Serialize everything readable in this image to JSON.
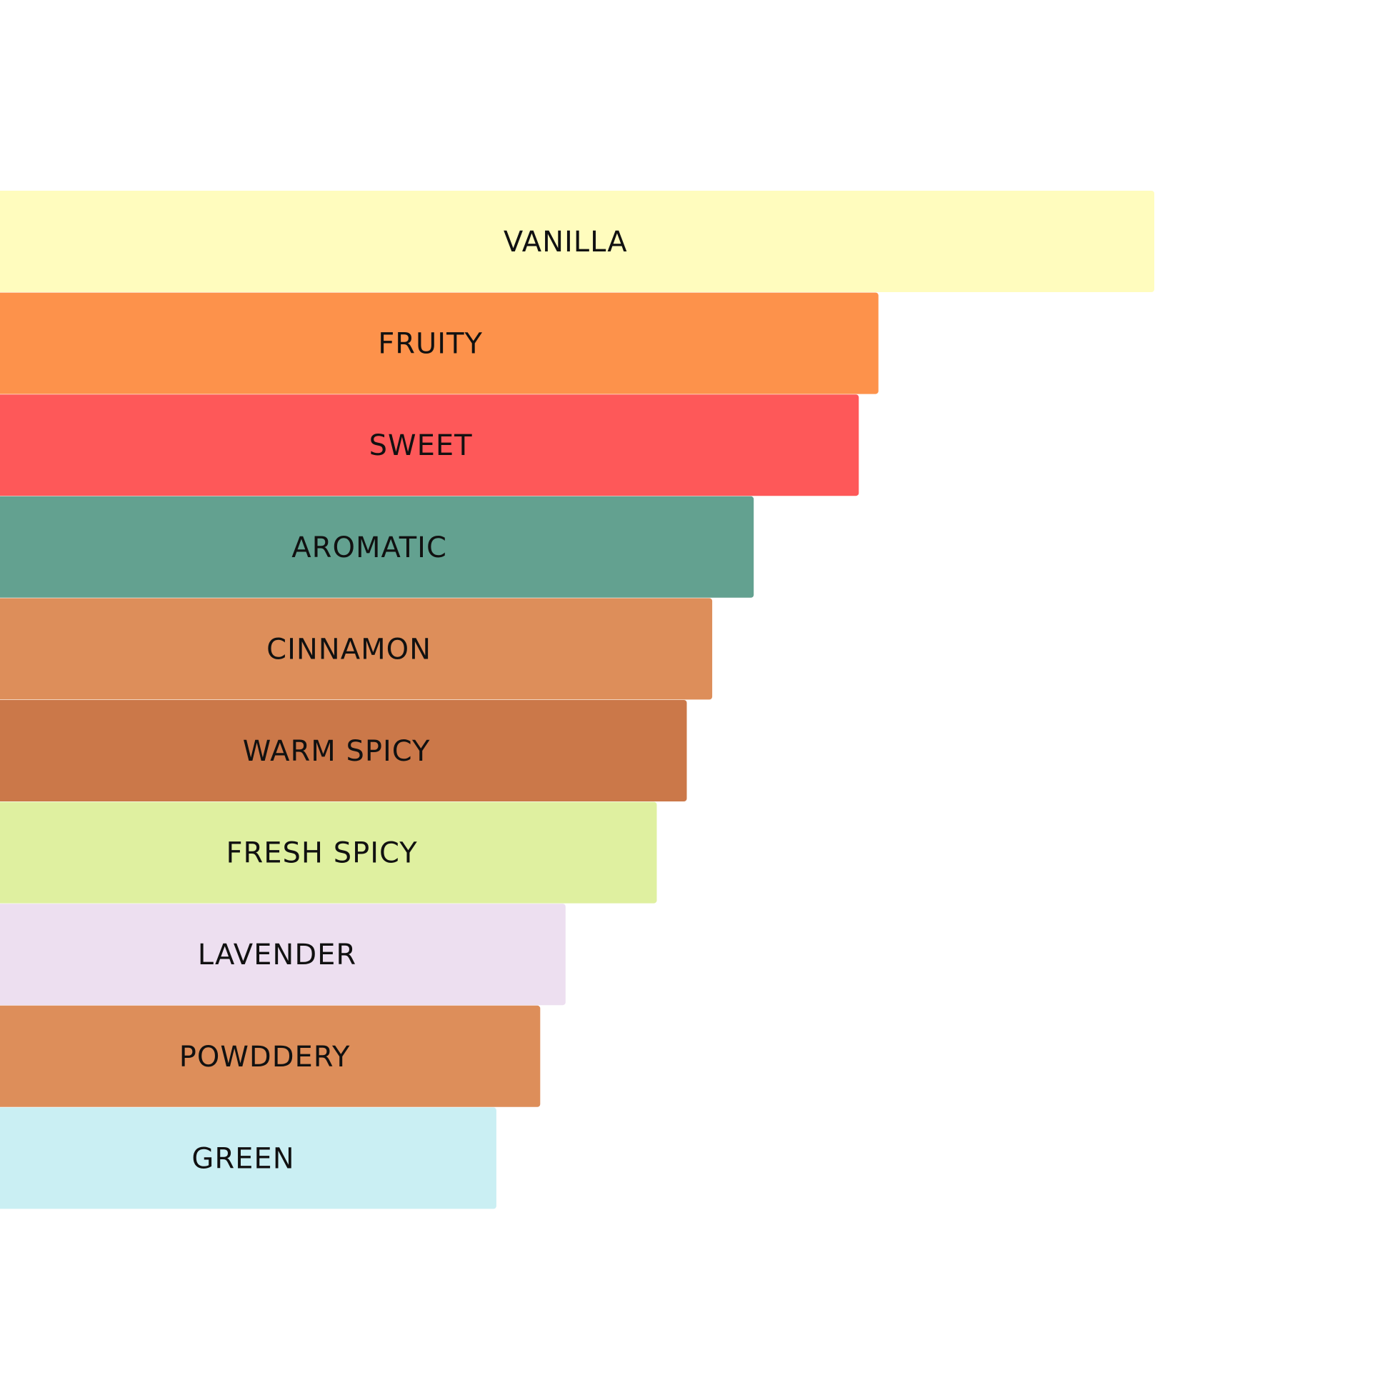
{
  "chart_data": {
    "type": "bar",
    "orientation": "horizontal",
    "categories": [
      "VANILLA",
      "FRUITY",
      "SWEET",
      "AROMATIC",
      "CINNAMON",
      "WARM SPICY",
      "FRESH SPICY",
      "LAVENDER",
      "POWDDERY",
      "GREEN"
    ],
    "values": [
      100,
      76.1,
      74.4,
      65.3,
      61.7,
      59.5,
      56.9,
      49,
      46.8,
      43
    ],
    "colors": [
      "#FFFCBE",
      "#FD924B",
      "#FE5859",
      "#63A190",
      "#DD8E5A",
      "#CB7849",
      "#DFF0A0",
      "#EDDFF0",
      "#DD8E5A",
      "#CAEFF3"
    ],
    "xlim": [
      0,
      100
    ],
    "title": "",
    "xlabel": "",
    "ylabel": "",
    "grid": false,
    "legend": "none"
  }
}
